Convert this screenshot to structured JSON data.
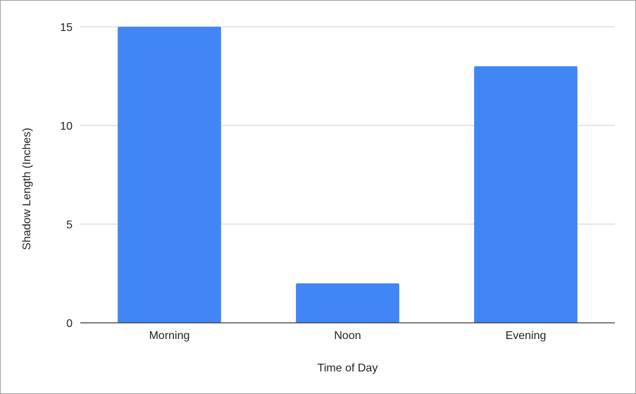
{
  "chart_data": {
    "type": "bar",
    "title": "",
    "xlabel": "Time of Day",
    "ylabel": "Shadow Length (Inches)",
    "categories": [
      "Morning",
      "Noon",
      "Evening"
    ],
    "values": [
      15,
      2,
      13
    ],
    "ylim": [
      0,
      15
    ],
    "yticks": [
      0,
      5,
      10,
      15
    ],
    "grid": true,
    "legend": "none",
    "bar_color": "#4285f4"
  }
}
